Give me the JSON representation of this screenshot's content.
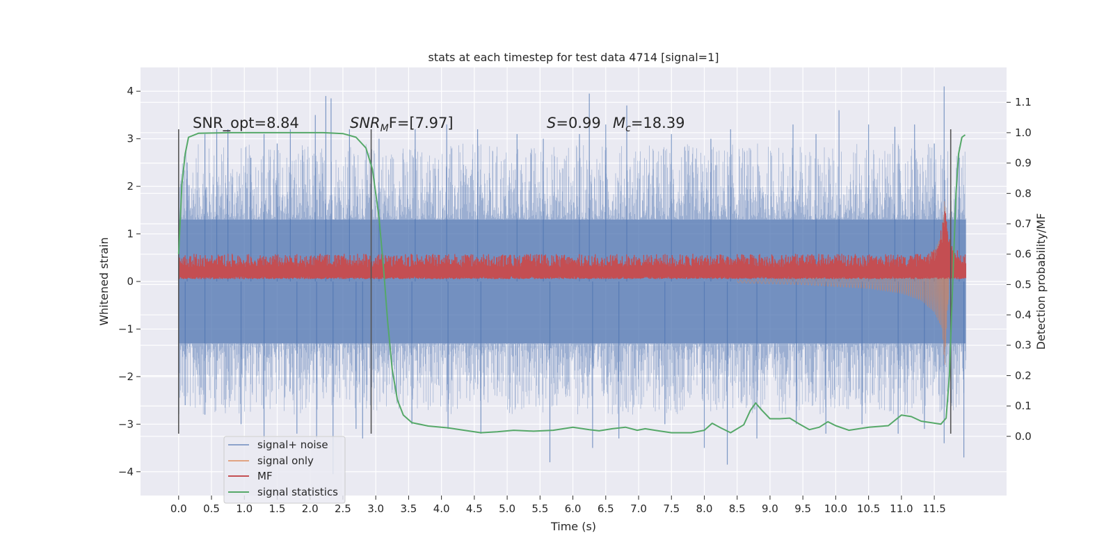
{
  "chart_data": {
    "type": "line",
    "title": "stats at each timestep for test data 4714 [signal=1]",
    "xlabel": "Time (s)",
    "ylabel": "Whitened strain",
    "y2label": "Detection probability/MF",
    "xlim": [
      -0.58,
      12.6
    ],
    "ylim": [
      -4.5,
      4.5
    ],
    "y2lim": [
      -0.195,
      1.215
    ],
    "x_ticks": [
      0.0,
      0.5,
      1.0,
      1.5,
      2.0,
      2.5,
      3.0,
      3.5,
      4.0,
      4.5,
      5.0,
      5.5,
      6.0,
      6.5,
      7.0,
      7.5,
      8.0,
      8.5,
      9.0,
      9.5,
      10.0,
      10.5,
      11.0,
      11.5
    ],
    "x_tick_labels": [
      "0.0",
      "0.5",
      "1.0",
      "1.5",
      "2.0",
      "2.5",
      "3.0",
      "3.5",
      "4.0",
      "4.5",
      "5.0",
      "5.5",
      "6.0",
      "6.5",
      "7.0",
      "7.5",
      "8.0",
      "8.5",
      "9.0",
      "9.5",
      "10.0",
      "10.5",
      "11.0",
      "11.5"
    ],
    "y_ticks": [
      -4,
      -3,
      -2,
      -1,
      0,
      1,
      2,
      3,
      4
    ],
    "y_tick_labels": [
      "−4",
      "−3",
      "−2",
      "−1",
      "0",
      "1",
      "2",
      "3",
      "4"
    ],
    "y2_ticks": [
      0.0,
      0.1,
      0.2,
      0.3,
      0.4,
      0.5,
      0.6,
      0.7,
      0.8,
      0.9,
      1.0,
      1.1
    ],
    "y2_tick_labels": [
      "0.0",
      "0.1",
      "0.2",
      "0.3",
      "0.4",
      "0.5",
      "0.6",
      "0.7",
      "0.8",
      "0.9",
      "1.0",
      "1.1"
    ],
    "grid": true,
    "legend_position": "lower-left",
    "annotations": {
      "snr_opt": "SNR_opt=8.84",
      "snr_mf_italic": "SNR",
      "snr_mf_sub": "M",
      "snr_mf_rest": "F=[7.97]",
      "s_italic": "S",
      "s_rest": "=0.99",
      "mc_italic": "M",
      "mc_sub": "c",
      "mc_rest": "=18.39"
    },
    "vertical_lines_x": [
      0.0,
      2.93,
      11.75
    ],
    "vertical_lines_yrange": [
      -3.2,
      3.2
    ],
    "series": [
      {
        "name": "signal+ noise",
        "color": "#4c72b0",
        "opacity": 0.5,
        "style": "dense-noise",
        "x_range": [
          0.0,
          11.98
        ],
        "band": [
          -1.3,
          1.3
        ],
        "spikes": [
          [
            0.13,
            2.5
          ],
          [
            0.4,
            3.1
          ],
          [
            0.58,
            3.2
          ],
          [
            0.75,
            3.2
          ],
          [
            1.1,
            2.6
          ],
          [
            1.3,
            3.1
          ],
          [
            1.5,
            2.9
          ],
          [
            1.7,
            3.2
          ],
          [
            2.08,
            3.5
          ],
          [
            2.24,
            3.9
          ],
          [
            2.32,
            3.85
          ],
          [
            2.6,
            3.2
          ],
          [
            3.05,
            3.0
          ],
          [
            3.6,
            3.2
          ],
          [
            4.08,
            3.3
          ],
          [
            4.55,
            3.2
          ],
          [
            5.15,
            3.1
          ],
          [
            5.55,
            3.0
          ],
          [
            6.1,
            3.1
          ],
          [
            6.25,
            3.95
          ],
          [
            6.5,
            3.3
          ],
          [
            6.82,
            3.7
          ],
          [
            7.5,
            3.1
          ],
          [
            8.1,
            3.0
          ],
          [
            8.4,
            3.2
          ],
          [
            9.35,
            3.3
          ],
          [
            9.7,
            3.1
          ],
          [
            10.05,
            3.6
          ],
          [
            10.5,
            3.3
          ],
          [
            10.9,
            3.25
          ],
          [
            11.2,
            3.3
          ],
          [
            11.5,
            2.9
          ],
          [
            11.65,
            4.1
          ],
          [
            11.88,
            2.6
          ]
        ],
        "neg_spikes": [
          [
            0.1,
            -2.6
          ],
          [
            0.4,
            -2.8
          ],
          [
            0.95,
            -3.0
          ],
          [
            1.3,
            -3.3
          ],
          [
            1.8,
            -3.2
          ],
          [
            2.1,
            -3.3
          ],
          [
            2.35,
            -4.05
          ],
          [
            2.7,
            -3.1
          ],
          [
            2.8,
            -3.3
          ],
          [
            3.55,
            -3.0
          ],
          [
            4.1,
            -3.1
          ],
          [
            4.6,
            -3.2
          ],
          [
            5.65,
            -3.8
          ],
          [
            6.3,
            -3.5
          ],
          [
            6.7,
            -3.3
          ],
          [
            7.4,
            -3.0
          ],
          [
            8.0,
            -3.5
          ],
          [
            8.35,
            -3.85
          ],
          [
            8.8,
            -3.3
          ],
          [
            9.4,
            -3.0
          ],
          [
            9.85,
            -3.2
          ],
          [
            10.4,
            -3.0
          ],
          [
            10.95,
            -3.2
          ],
          [
            11.35,
            -3.1
          ],
          [
            11.65,
            -3.4
          ],
          [
            11.95,
            -3.7
          ]
        ]
      },
      {
        "name": "signal only",
        "color": "#dd8452",
        "opacity": 0.6,
        "style": "chirp",
        "t_merge": 11.68,
        "envelope": [
          [
            8.5,
            0.03
          ],
          [
            9.5,
            0.07
          ],
          [
            10.5,
            0.15
          ],
          [
            11.0,
            0.25
          ],
          [
            11.3,
            0.4
          ],
          [
            11.5,
            0.65
          ],
          [
            11.62,
            1.0
          ],
          [
            11.66,
            1.85
          ],
          [
            11.7,
            0.6
          ],
          [
            11.75,
            0.0
          ]
        ]
      },
      {
        "name": "MF",
        "color": "#c44e52",
        "opacity": 1,
        "style": "mf",
        "x_range": [
          0.0,
          11.98
        ],
        "band": [
          0.05,
          0.42
        ],
        "peak": [
          11.66,
          1.62
        ]
      },
      {
        "name": "signal statistics",
        "color": "#55a868",
        "opacity": 1,
        "style": "line",
        "axis": "right",
        "points": [
          [
            0.0,
            0.6
          ],
          [
            0.05,
            0.83
          ],
          [
            0.1,
            0.93
          ],
          [
            0.15,
            0.985
          ],
          [
            0.3,
            0.998
          ],
          [
            0.8,
            1.0
          ],
          [
            1.5,
            1.0
          ],
          [
            2.2,
            1.0
          ],
          [
            2.5,
            0.997
          ],
          [
            2.7,
            0.985
          ],
          [
            2.85,
            0.95
          ],
          [
            2.95,
            0.88
          ],
          [
            3.05,
            0.72
          ],
          [
            3.12,
            0.55
          ],
          [
            3.18,
            0.38
          ],
          [
            3.25,
            0.22
          ],
          [
            3.33,
            0.12
          ],
          [
            3.42,
            0.07
          ],
          [
            3.55,
            0.045
          ],
          [
            3.8,
            0.034
          ],
          [
            4.1,
            0.028
          ],
          [
            4.4,
            0.018
          ],
          [
            4.6,
            0.012
          ],
          [
            4.85,
            0.015
          ],
          [
            5.1,
            0.02
          ],
          [
            5.4,
            0.017
          ],
          [
            5.7,
            0.02
          ],
          [
            6.0,
            0.03
          ],
          [
            6.25,
            0.022
          ],
          [
            6.4,
            0.018
          ],
          [
            6.6,
            0.025
          ],
          [
            6.8,
            0.03
          ],
          [
            6.98,
            0.02
          ],
          [
            7.1,
            0.025
          ],
          [
            7.3,
            0.018
          ],
          [
            7.5,
            0.012
          ],
          [
            7.8,
            0.012
          ],
          [
            8.0,
            0.02
          ],
          [
            8.12,
            0.043
          ],
          [
            8.25,
            0.028
          ],
          [
            8.4,
            0.012
          ],
          [
            8.6,
            0.038
          ],
          [
            8.7,
            0.085
          ],
          [
            8.78,
            0.11
          ],
          [
            8.88,
            0.085
          ],
          [
            9.0,
            0.058
          ],
          [
            9.15,
            0.058
          ],
          [
            9.3,
            0.06
          ],
          [
            9.45,
            0.04
          ],
          [
            9.6,
            0.022
          ],
          [
            9.75,
            0.03
          ],
          [
            9.88,
            0.048
          ],
          [
            10.0,
            0.035
          ],
          [
            10.2,
            0.02
          ],
          [
            10.5,
            0.03
          ],
          [
            10.8,
            0.035
          ],
          [
            11.0,
            0.07
          ],
          [
            11.15,
            0.065
          ],
          [
            11.3,
            0.05
          ],
          [
            11.45,
            0.045
          ],
          [
            11.6,
            0.04
          ],
          [
            11.68,
            0.06
          ],
          [
            11.73,
            0.2
          ],
          [
            11.78,
            0.5
          ],
          [
            11.83,
            0.8
          ],
          [
            11.87,
            0.93
          ],
          [
            11.92,
            0.985
          ],
          [
            11.97,
            0.993
          ]
        ]
      }
    ]
  }
}
